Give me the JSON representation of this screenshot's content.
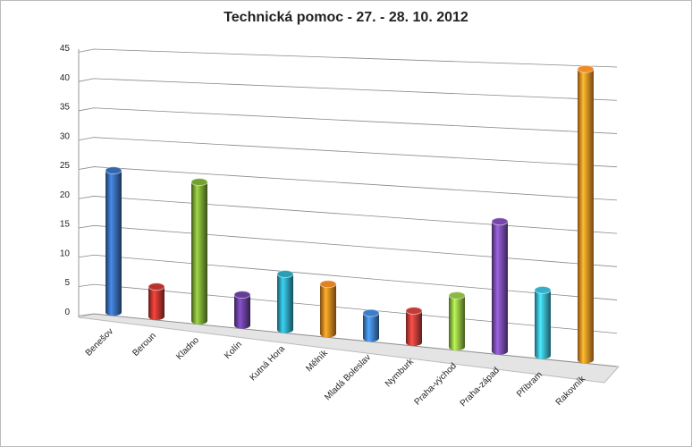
{
  "chart_data": {
    "type": "bar3d",
    "title": "Technická pomoc - 27. - 28. 10. 2012",
    "categories": [
      "Benešov",
      "Beroun",
      "Kladno",
      "Kolín",
      "Kutná Hora",
      "Mělník",
      "Mladá Boleslav",
      "Nymburk",
      "Praha-východ",
      "Praha-západ",
      "Příbram",
      "Rakovník"
    ],
    "values": [
      24,
      5,
      23,
      5,
      9,
      8,
      4,
      5,
      8,
      20,
      10,
      44
    ],
    "colors": [
      "#3567ad",
      "#b8332e",
      "#76a032",
      "#653d97",
      "#2b9db5",
      "#e0821f",
      "#3d7cc9",
      "#c23b36",
      "#8bb83f",
      "#7449a8",
      "#36aec9",
      "#f08c22"
    ],
    "ylim": [
      0,
      45
    ],
    "yticks": [
      0,
      5,
      10,
      15,
      20,
      25,
      30,
      35,
      40,
      45
    ],
    "grid": true
  }
}
